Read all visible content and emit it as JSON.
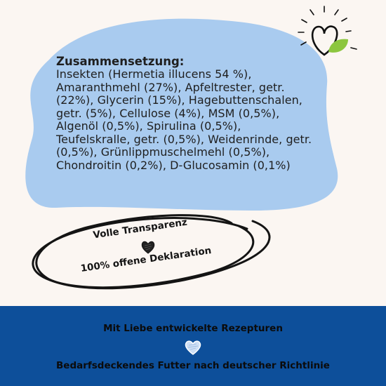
{
  "composition": {
    "title": "Zusammensetzung:",
    "lines": [
      "Insekten (Hermetia illucens 54 %),",
      "Amaranthmehl (27%), Apfeltrester, getr.",
      "(22%), Glycerin (15%), Hagebuttenschalen,",
      "getr. (5%), Cellulose (4%), MSM (0,5%),",
      "Algenöl (0,5%), Spirulina (0,5%),",
      "Teufelskralle, getr. (0,5%), Weidenrinde, getr.",
      "(0,5%), Grünlippmuschelmehl (0,5%),",
      "Chondroitin (0,2%), D-Glucosamin (0,1%)"
    ]
  },
  "stamp": {
    "line1": "Volle Transparenz",
    "line2": "100% offene Deklaration"
  },
  "footer": {
    "line1": "Mit Liebe entwickelte Rezepturen",
    "line2": "Bedarfsdeckendes Futter nach deutscher Richtlinie"
  },
  "colors": {
    "background": "#fbf6f2",
    "blob": "#a9cbef",
    "footer": "#0d4f9a",
    "leaf": "#8cc63f"
  },
  "icons": [
    "heart-leaf-icon",
    "scribble-heart-icon",
    "outline-heart-icon"
  ]
}
